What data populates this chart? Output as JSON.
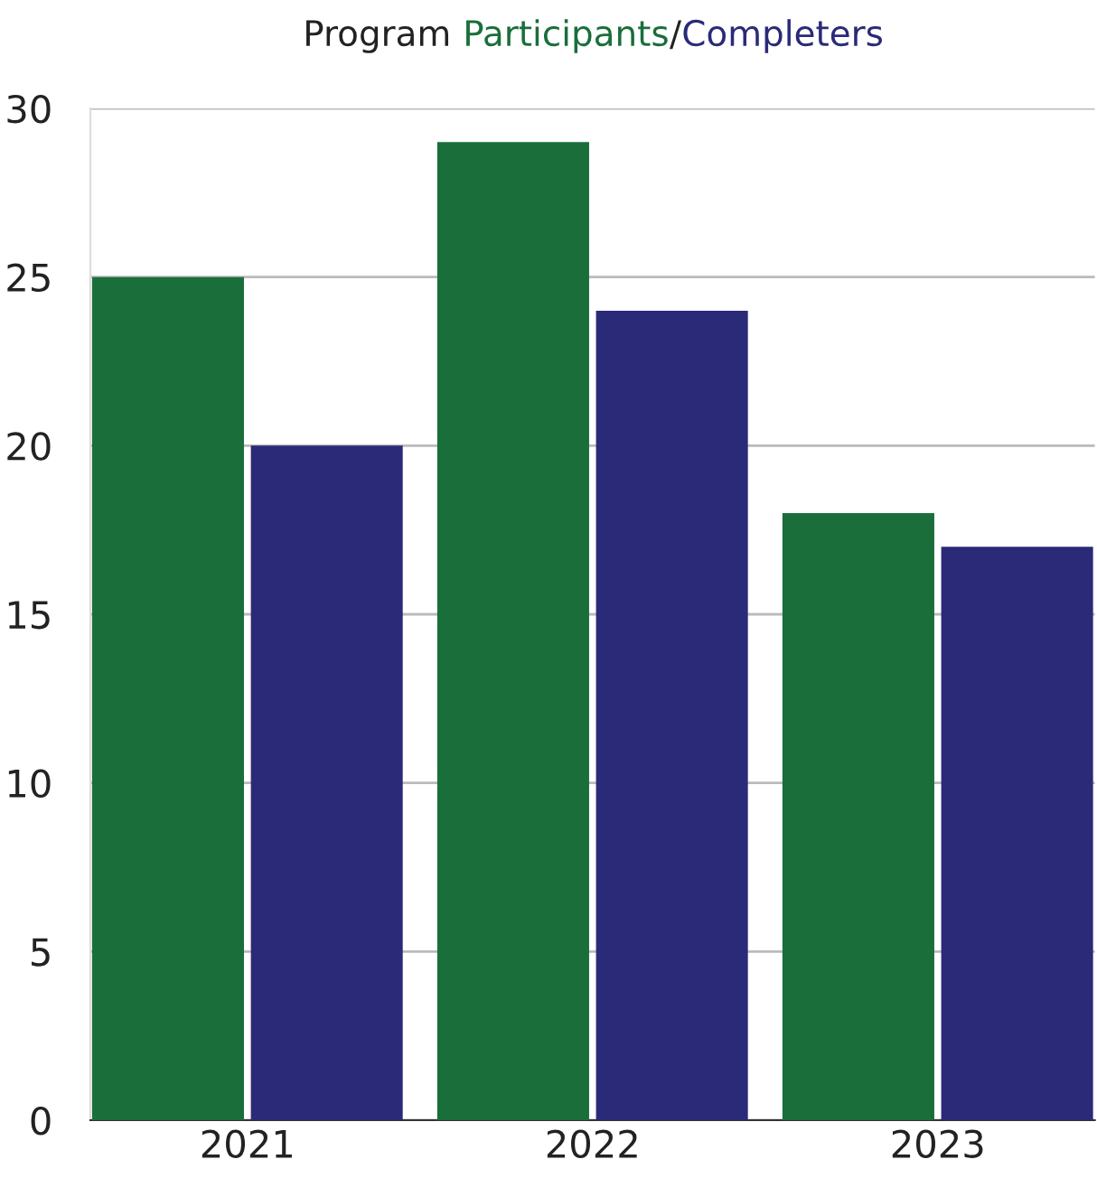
{
  "chart_data": {
    "type": "bar",
    "title": "Program",
    "categories": [
      "2021",
      "2022",
      "2023"
    ],
    "series": [
      {
        "name": "Participants",
        "color": "#1a6e3a",
        "values": [
          25,
          29,
          18
        ]
      },
      {
        "name": "Completers",
        "color": "#2a2a78",
        "values": [
          20,
          24,
          17
        ]
      }
    ],
    "ylim": [
      0,
      30
    ],
    "yticks": [
      0,
      5,
      10,
      15,
      20,
      25,
      30
    ],
    "grid": "y",
    "legend": "top",
    "annotations": [
      "/"
    ]
  }
}
